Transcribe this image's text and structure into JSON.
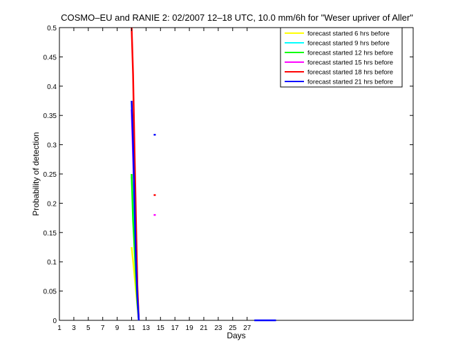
{
  "chart_data": {
    "type": "line",
    "title": "COSMO–EU and RANIE 2: 02/2007 12–18 UTC, 10.0 mm/6h for \"Weser upriver of Aller\"",
    "xlabel": "Days",
    "ylabel": "Probability of detection",
    "xlim": [
      1,
      50
    ],
    "ylim": [
      0,
      0.5
    ],
    "x_ticks": [
      1,
      3,
      5,
      7,
      9,
      11,
      13,
      15,
      17,
      19,
      21,
      23,
      25,
      27
    ],
    "y_ticks": [
      0,
      0.05,
      0.1,
      0.15,
      0.2,
      0.25,
      0.3,
      0.35,
      0.4,
      0.45,
      0.5
    ],
    "y_tick_labels": [
      "0",
      "0.05",
      "0.1",
      "0.15",
      "0.2",
      "0.25",
      "0.3",
      "0.35",
      "0.4",
      "0.45",
      "0.5"
    ],
    "grid": false,
    "legend_position": "top-right",
    "series": [
      {
        "name": "forecast started 6 hrs before",
        "color": "#ffff00",
        "segments": [
          [
            [
              11.0,
              0.125
            ],
            [
              11.3,
              0.09
            ],
            [
              11.6,
              0.05
            ],
            [
              12.0,
              0.0
            ]
          ]
        ]
      },
      {
        "name": "forecast started 9 hrs before",
        "color": "#00ffff",
        "segments": [
          [
            [
              11.0,
              0.245
            ],
            [
              11.3,
              0.18
            ],
            [
              11.6,
              0.08
            ],
            [
              12.0,
              0.0
            ]
          ]
        ]
      },
      {
        "name": "forecast started 12 hrs before",
        "color": "#00ff00",
        "segments": [
          [
            [
              11.0,
              0.25
            ],
            [
              11.2,
              0.17
            ],
            [
              11.5,
              0.1
            ],
            [
              11.8,
              0.03
            ],
            [
              12.0,
              0.0
            ]
          ]
        ]
      },
      {
        "name": "forecast started 15 hrs before",
        "color": "#ff00ff",
        "segments": [
          [
            [
              11.0,
              0.36
            ],
            [
              11.4,
              0.2
            ],
            [
              11.8,
              0.05
            ],
            [
              12.0,
              0.0
            ]
          ],
          [
            [
              14.2,
              0.18
            ],
            [
              14.2,
              0.18
            ]
          ]
        ]
      },
      {
        "name": "forecast started 18 hrs before",
        "color": "#ff0000",
        "segments": [
          [
            [
              11.0,
              0.5
            ],
            [
              11.2,
              0.42
            ],
            [
              11.4,
              0.29
            ],
            [
              11.6,
              0.17
            ],
            [
              11.8,
              0.06
            ],
            [
              12.0,
              0.0
            ]
          ],
          [
            [
              14.2,
              0.214
            ],
            [
              14.2,
              0.214
            ]
          ]
        ]
      },
      {
        "name": "forecast started 21 hrs before",
        "color": "#0000ff",
        "segments": [
          [
            [
              11.0,
              0.375
            ],
            [
              11.2,
              0.3
            ],
            [
              11.4,
              0.2
            ],
            [
              11.6,
              0.1
            ],
            [
              11.8,
              0.04
            ],
            [
              12.0,
              0.0
            ]
          ],
          [
            [
              14.2,
              0.317
            ],
            [
              14.2,
              0.317
            ]
          ],
          [
            [
              28.0,
              0.0
            ],
            [
              31.0,
              0.0
            ]
          ]
        ]
      }
    ]
  }
}
